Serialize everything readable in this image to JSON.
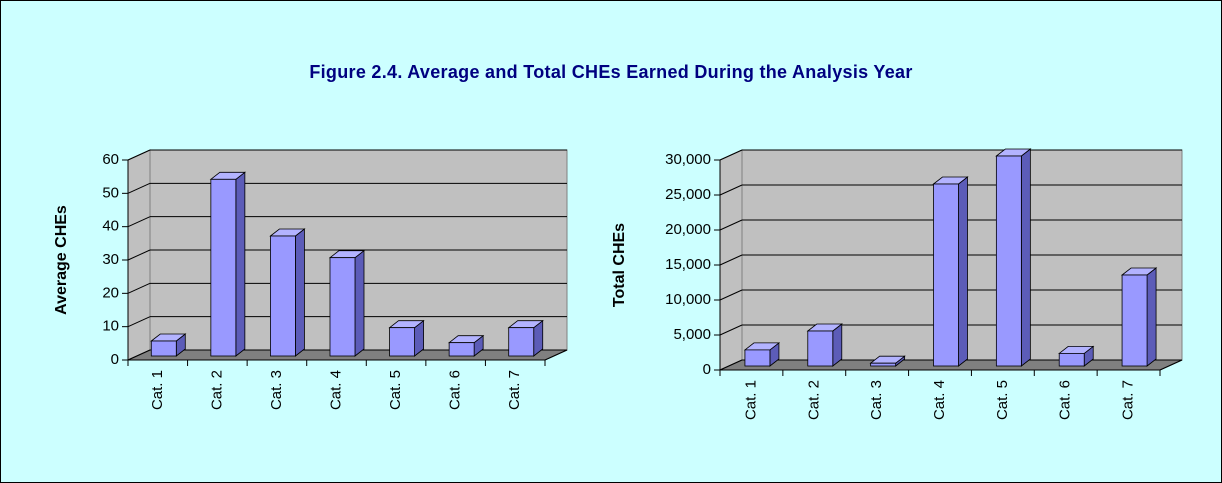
{
  "title": "Figure 2.4. Average and Total CHEs Earned During the Analysis Year",
  "chart_data": [
    {
      "type": "bar3d",
      "y_label": "Average CHEs",
      "categories": [
        "Cat. 1",
        "Cat. 2",
        "Cat. 3",
        "Cat. 4",
        "Cat. 5",
        "Cat. 6",
        "Cat. 7"
      ],
      "values": [
        4.5,
        53,
        36,
        29.5,
        8.5,
        4,
        8.5
      ],
      "color": "#9999ff",
      "ylim": [
        0,
        60
      ],
      "yticks": [
        0,
        10,
        20,
        30,
        40,
        50,
        60
      ],
      "grid": true
    },
    {
      "type": "bar3d",
      "y_label": "Total CHEs",
      "categories": [
        "Cat. 1",
        "Cat. 2",
        "Cat. 3",
        "Cat. 4",
        "Cat. 5",
        "Cat. 6",
        "Cat. 7"
      ],
      "values": [
        2300,
        5000,
        400,
        26000,
        30000,
        1800,
        13000
      ],
      "color": "#9999ff",
      "ylim": [
        0,
        30000
      ],
      "yticks": [
        0,
        {
          "value": 5000,
          "label": "5,000"
        },
        {
          "value": 10000,
          "label": "10,000"
        },
        {
          "value": 15000,
          "label": "15,000"
        },
        {
          "value": 20000,
          "label": "20,000"
        },
        {
          "value": 25000,
          "label": "25,000"
        },
        {
          "value": 30000,
          "label": "30,000"
        }
      ],
      "grid": true
    }
  ]
}
